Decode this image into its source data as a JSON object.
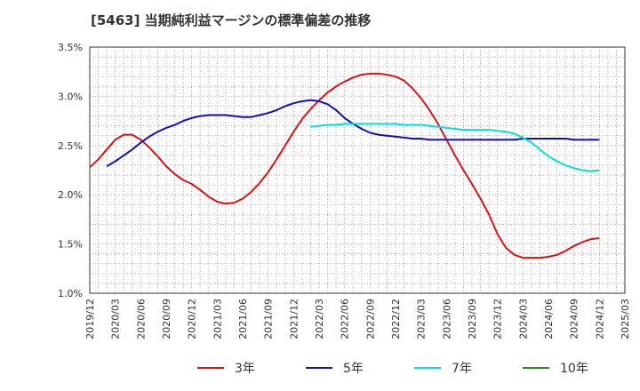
{
  "chart_data": {
    "type": "line",
    "title": "[5463]  当期純利益マージンの標準偏差の推移",
    "xlabel": "",
    "ylabel": "",
    "y_ticks": [
      "1.0%",
      "1.5%",
      "2.0%",
      "2.5%",
      "3.0%",
      "3.5%"
    ],
    "ylim": [
      1.0,
      3.5
    ],
    "x_ticks": [
      "2019/12",
      "2020/03",
      "2020/06",
      "2020/09",
      "2020/12",
      "2021/03",
      "2021/06",
      "2021/09",
      "2021/12",
      "2022/03",
      "2022/06",
      "2022/09",
      "2022/12",
      "2023/03",
      "2023/06",
      "2023/09",
      "2023/12",
      "2024/03",
      "2024/06",
      "2024/09",
      "2024/12",
      "2025/03"
    ],
    "grid": true,
    "legend_position": "bottom",
    "series": [
      {
        "name": "3年",
        "color": "#dd1111",
        "points": [
          [
            "2019/12",
            2.28
          ],
          [
            "2020/01",
            2.36
          ],
          [
            "2020/02",
            2.46
          ],
          [
            "2020/03",
            2.56
          ],
          [
            "2020/04",
            2.61
          ],
          [
            "2020/05",
            2.61
          ],
          [
            "2020/06",
            2.56
          ],
          [
            "2020/07",
            2.48
          ],
          [
            "2020/08",
            2.39
          ],
          [
            "2020/09",
            2.29
          ],
          [
            "2020/10",
            2.21
          ],
          [
            "2020/11",
            2.15
          ],
          [
            "2020/12",
            2.11
          ],
          [
            "2021/01",
            2.05
          ],
          [
            "2021/02",
            1.98
          ],
          [
            "2021/03",
            1.93
          ],
          [
            "2021/04",
            1.91
          ],
          [
            "2021/05",
            1.92
          ],
          [
            "2021/06",
            1.96
          ],
          [
            "2021/07",
            2.03
          ],
          [
            "2021/08",
            2.12
          ],
          [
            "2021/09",
            2.23
          ],
          [
            "2021/10",
            2.36
          ],
          [
            "2021/11",
            2.5
          ],
          [
            "2021/12",
            2.64
          ],
          [
            "2022/01",
            2.77
          ],
          [
            "2022/02",
            2.87
          ],
          [
            "2022/03",
            2.96
          ],
          [
            "2022/04",
            3.04
          ],
          [
            "2022/05",
            3.1
          ],
          [
            "2022/06",
            3.15
          ],
          [
            "2022/07",
            3.19
          ],
          [
            "2022/08",
            3.22
          ],
          [
            "2022/09",
            3.23
          ],
          [
            "2022/10",
            3.23
          ],
          [
            "2022/11",
            3.22
          ],
          [
            "2022/12",
            3.2
          ],
          [
            "2023/01",
            3.16
          ],
          [
            "2023/02",
            3.08
          ],
          [
            "2023/03",
            2.98
          ],
          [
            "2023/04",
            2.86
          ],
          [
            "2023/05",
            2.72
          ],
          [
            "2023/06",
            2.56
          ],
          [
            "2023/07",
            2.4
          ],
          [
            "2023/08",
            2.25
          ],
          [
            "2023/09",
            2.11
          ],
          [
            "2023/10",
            1.96
          ],
          [
            "2023/11",
            1.8
          ],
          [
            "2023/12",
            1.6
          ],
          [
            "2024/01",
            1.46
          ],
          [
            "2024/02",
            1.39
          ],
          [
            "2024/03",
            1.36
          ],
          [
            "2024/04",
            1.36
          ],
          [
            "2024/05",
            1.36
          ],
          [
            "2024/06",
            1.37
          ],
          [
            "2024/07",
            1.39
          ],
          [
            "2024/08",
            1.43
          ],
          [
            "2024/09",
            1.48
          ],
          [
            "2024/10",
            1.52
          ],
          [
            "2024/11",
            1.55
          ],
          [
            "2024/12",
            1.56
          ]
        ]
      },
      {
        "name": "5年",
        "color": "#1111bb",
        "points": [
          [
            "2020/02",
            2.29
          ],
          [
            "2020/03",
            2.34
          ],
          [
            "2020/04",
            2.4
          ],
          [
            "2020/05",
            2.46
          ],
          [
            "2020/06",
            2.53
          ],
          [
            "2020/07",
            2.59
          ],
          [
            "2020/08",
            2.64
          ],
          [
            "2020/09",
            2.68
          ],
          [
            "2020/10",
            2.71
          ],
          [
            "2020/11",
            2.75
          ],
          [
            "2020/12",
            2.78
          ],
          [
            "2021/01",
            2.8
          ],
          [
            "2021/02",
            2.81
          ],
          [
            "2021/03",
            2.81
          ],
          [
            "2021/04",
            2.81
          ],
          [
            "2021/05",
            2.8
          ],
          [
            "2021/06",
            2.79
          ],
          [
            "2021/07",
            2.79
          ],
          [
            "2021/08",
            2.81
          ],
          [
            "2021/09",
            2.83
          ],
          [
            "2021/10",
            2.86
          ],
          [
            "2021/11",
            2.9
          ],
          [
            "2021/12",
            2.93
          ],
          [
            "2022/01",
            2.95
          ],
          [
            "2022/02",
            2.96
          ],
          [
            "2022/03",
            2.95
          ],
          [
            "2022/04",
            2.92
          ],
          [
            "2022/05",
            2.86
          ],
          [
            "2022/06",
            2.78
          ],
          [
            "2022/07",
            2.72
          ],
          [
            "2022/08",
            2.67
          ],
          [
            "2022/09",
            2.63
          ],
          [
            "2022/10",
            2.61
          ],
          [
            "2022/11",
            2.6
          ],
          [
            "2022/12",
            2.59
          ],
          [
            "2023/01",
            2.58
          ],
          [
            "2023/02",
            2.57
          ],
          [
            "2023/03",
            2.57
          ],
          [
            "2023/04",
            2.56
          ],
          [
            "2023/05",
            2.56
          ],
          [
            "2023/06",
            2.56
          ],
          [
            "2023/07",
            2.56
          ],
          [
            "2023/08",
            2.56
          ],
          [
            "2023/09",
            2.56
          ],
          [
            "2023/10",
            2.56
          ],
          [
            "2023/11",
            2.56
          ],
          [
            "2023/12",
            2.56
          ],
          [
            "2024/01",
            2.56
          ],
          [
            "2024/02",
            2.56
          ],
          [
            "2024/03",
            2.57
          ],
          [
            "2024/04",
            2.57
          ],
          [
            "2024/05",
            2.57
          ],
          [
            "2024/06",
            2.57
          ],
          [
            "2024/07",
            2.57
          ],
          [
            "2024/08",
            2.57
          ],
          [
            "2024/09",
            2.56
          ],
          [
            "2024/10",
            2.56
          ],
          [
            "2024/11",
            2.56
          ],
          [
            "2024/12",
            2.56
          ]
        ]
      },
      {
        "name": "7年",
        "color": "#00e0e0",
        "points": [
          [
            "2022/02",
            2.69
          ],
          [
            "2022/03",
            2.7
          ],
          [
            "2022/04",
            2.71
          ],
          [
            "2022/05",
            2.71
          ],
          [
            "2022/06",
            2.72
          ],
          [
            "2022/07",
            2.72
          ],
          [
            "2022/08",
            2.72
          ],
          [
            "2022/09",
            2.72
          ],
          [
            "2022/10",
            2.72
          ],
          [
            "2022/11",
            2.72
          ],
          [
            "2022/12",
            2.72
          ],
          [
            "2023/01",
            2.71
          ],
          [
            "2023/02",
            2.71
          ],
          [
            "2023/03",
            2.71
          ],
          [
            "2023/04",
            2.7
          ],
          [
            "2023/05",
            2.69
          ],
          [
            "2023/06",
            2.68
          ],
          [
            "2023/07",
            2.67
          ],
          [
            "2023/08",
            2.66
          ],
          [
            "2023/09",
            2.66
          ],
          [
            "2023/10",
            2.66
          ],
          [
            "2023/11",
            2.66
          ],
          [
            "2023/12",
            2.65
          ],
          [
            "2024/01",
            2.64
          ],
          [
            "2024/02",
            2.62
          ],
          [
            "2024/03",
            2.58
          ],
          [
            "2024/04",
            2.53
          ],
          [
            "2024/05",
            2.46
          ],
          [
            "2024/06",
            2.39
          ],
          [
            "2024/07",
            2.34
          ],
          [
            "2024/08",
            2.3
          ],
          [
            "2024/09",
            2.27
          ],
          [
            "2024/10",
            2.25
          ],
          [
            "2024/11",
            2.24
          ],
          [
            "2024/12",
            2.25
          ]
        ]
      },
      {
        "name": "10年",
        "color": "#228b22",
        "points": []
      }
    ]
  }
}
